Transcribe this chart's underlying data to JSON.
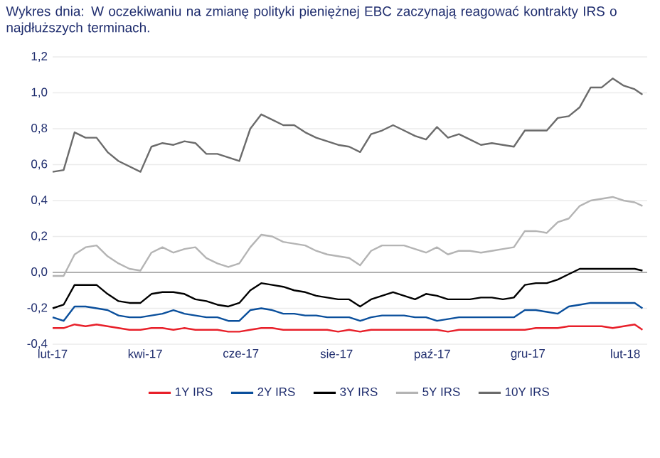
{
  "chart_data": {
    "type": "line",
    "title": "Wykres dnia: W oczekiwaniu na zmianę polityki pieniężnej EBC zaczynają reagować kontrakty IRS o najdłuższych terminach.",
    "x": [
      "2017-02-01",
      "2017-02-08",
      "2017-02-15",
      "2017-02-22",
      "2017-03-01",
      "2017-03-08",
      "2017-03-15",
      "2017-03-22",
      "2017-03-29",
      "2017-04-05",
      "2017-04-12",
      "2017-04-19",
      "2017-04-26",
      "2017-05-03",
      "2017-05-10",
      "2017-05-17",
      "2017-05-24",
      "2017-05-31",
      "2017-06-07",
      "2017-06-14",
      "2017-06-21",
      "2017-06-28",
      "2017-07-05",
      "2017-07-12",
      "2017-07-19",
      "2017-07-26",
      "2017-08-02",
      "2017-08-09",
      "2017-08-16",
      "2017-08-23",
      "2017-08-30",
      "2017-09-06",
      "2017-09-13",
      "2017-09-20",
      "2017-09-27",
      "2017-10-04",
      "2017-10-11",
      "2017-10-18",
      "2017-10-25",
      "2017-11-01",
      "2017-11-08",
      "2017-11-15",
      "2017-11-22",
      "2017-11-29",
      "2017-12-06",
      "2017-12-13",
      "2017-12-20",
      "2017-12-27",
      "2018-01-03",
      "2018-01-10",
      "2018-01-17",
      "2018-01-24",
      "2018-01-31",
      "2018-02-07",
      "2018-02-12"
    ],
    "series": [
      {
        "name": "1Y IRS",
        "color": "#e8202a",
        "values": [
          -0.31,
          -0.31,
          -0.29,
          -0.3,
          -0.29,
          -0.3,
          -0.31,
          -0.32,
          -0.32,
          -0.31,
          -0.31,
          -0.32,
          -0.31,
          -0.32,
          -0.32,
          -0.32,
          -0.33,
          -0.33,
          -0.32,
          -0.31,
          -0.31,
          -0.32,
          -0.32,
          -0.32,
          -0.32,
          -0.32,
          -0.33,
          -0.32,
          -0.33,
          -0.32,
          -0.32,
          -0.32,
          -0.32,
          -0.32,
          -0.32,
          -0.32,
          -0.33,
          -0.32,
          -0.32,
          -0.32,
          -0.32,
          -0.32,
          -0.32,
          -0.32,
          -0.31,
          -0.31,
          -0.31,
          -0.3,
          -0.3,
          -0.3,
          -0.3,
          -0.31,
          -0.3,
          -0.29,
          -0.32
        ]
      },
      {
        "name": "2Y IRS",
        "color": "#0a4f9c",
        "values": [
          -0.25,
          -0.27,
          -0.19,
          -0.19,
          -0.2,
          -0.21,
          -0.24,
          -0.25,
          -0.25,
          -0.24,
          -0.23,
          -0.21,
          -0.23,
          -0.24,
          -0.25,
          -0.25,
          -0.27,
          -0.27,
          -0.21,
          -0.2,
          -0.21,
          -0.23,
          -0.23,
          -0.24,
          -0.24,
          -0.25,
          -0.25,
          -0.25,
          -0.27,
          -0.25,
          -0.24,
          -0.24,
          -0.24,
          -0.25,
          -0.25,
          -0.27,
          -0.26,
          -0.25,
          -0.25,
          -0.25,
          -0.25,
          -0.25,
          -0.25,
          -0.21,
          -0.21,
          -0.22,
          -0.23,
          -0.19,
          -0.18,
          -0.17,
          -0.17,
          -0.17,
          -0.17,
          -0.17,
          -0.2
        ]
      },
      {
        "name": "3Y IRS",
        "color": "#000000",
        "values": [
          -0.2,
          -0.18,
          -0.07,
          -0.07,
          -0.07,
          -0.12,
          -0.16,
          -0.17,
          -0.17,
          -0.12,
          -0.11,
          -0.11,
          -0.12,
          -0.15,
          -0.16,
          -0.18,
          -0.19,
          -0.17,
          -0.1,
          -0.06,
          -0.07,
          -0.08,
          -0.1,
          -0.11,
          -0.13,
          -0.14,
          -0.15,
          -0.15,
          -0.19,
          -0.15,
          -0.13,
          -0.11,
          -0.13,
          -0.15,
          -0.12,
          -0.13,
          -0.15,
          -0.15,
          -0.15,
          -0.14,
          -0.14,
          -0.15,
          -0.14,
          -0.07,
          -0.06,
          -0.06,
          -0.04,
          -0.01,
          0.02,
          0.02,
          0.02,
          0.02,
          0.02,
          0.02,
          0.01
        ]
      },
      {
        "name": "5Y IRS",
        "color": "#b4b4b4",
        "values": [
          -0.02,
          -0.02,
          0.1,
          0.14,
          0.15,
          0.09,
          0.05,
          0.02,
          0.01,
          0.11,
          0.14,
          0.11,
          0.13,
          0.14,
          0.08,
          0.05,
          0.03,
          0.05,
          0.14,
          0.21,
          0.2,
          0.17,
          0.16,
          0.15,
          0.12,
          0.1,
          0.09,
          0.08,
          0.04,
          0.12,
          0.15,
          0.15,
          0.15,
          0.13,
          0.11,
          0.14,
          0.1,
          0.12,
          0.12,
          0.11,
          0.12,
          0.13,
          0.14,
          0.23,
          0.23,
          0.22,
          0.28,
          0.3,
          0.37,
          0.4,
          0.41,
          0.42,
          0.4,
          0.39,
          0.37
        ]
      },
      {
        "name": "10Y IRS",
        "color": "#6b6b6b",
        "values": [
          0.56,
          0.57,
          0.78,
          0.75,
          0.75,
          0.67,
          0.62,
          0.59,
          0.56,
          0.7,
          0.72,
          0.71,
          0.73,
          0.72,
          0.66,
          0.66,
          0.64,
          0.62,
          0.8,
          0.88,
          0.85,
          0.82,
          0.82,
          0.78,
          0.75,
          0.73,
          0.71,
          0.7,
          0.67,
          0.77,
          0.79,
          0.82,
          0.79,
          0.76,
          0.74,
          0.81,
          0.75,
          0.77,
          0.74,
          0.71,
          0.72,
          0.71,
          0.7,
          0.79,
          0.79,
          0.79,
          0.86,
          0.87,
          0.92,
          1.03,
          1.03,
          1.08,
          1.04,
          1.02,
          0.99
        ]
      }
    ],
    "xlim": [
      "2017-02-01",
      "2018-02-15"
    ],
    "xticks": [
      {
        "value": "2017-02-01",
        "label": "lut-17"
      },
      {
        "value": "2017-04-01",
        "label": "kwi-17"
      },
      {
        "value": "2017-06-01",
        "label": "cze-17"
      },
      {
        "value": "2017-08-01",
        "label": "sie-17"
      },
      {
        "value": "2017-10-01",
        "label": "paź-17"
      },
      {
        "value": "2017-12-01",
        "label": "gru-17"
      },
      {
        "value": "2018-02-01",
        "label": "lut-18"
      }
    ],
    "ylim": [
      -0.4,
      1.2
    ],
    "yticks": [
      {
        "value": -0.4,
        "label": "-0,4"
      },
      {
        "value": -0.2,
        "label": "-0,2"
      },
      {
        "value": 0,
        "label": "0,0"
      },
      {
        "value": 0.2,
        "label": "0,2"
      },
      {
        "value": 0.4,
        "label": "0,4"
      },
      {
        "value": 0.6,
        "label": "0,6"
      },
      {
        "value": 0.8,
        "label": "0,8"
      },
      {
        "value": 1.0,
        "label": "1,0"
      },
      {
        "value": 1.2,
        "label": "1,2"
      }
    ],
    "grid": "y",
    "legend": "bottom",
    "marker": "none",
    "line_style": "solid"
  }
}
